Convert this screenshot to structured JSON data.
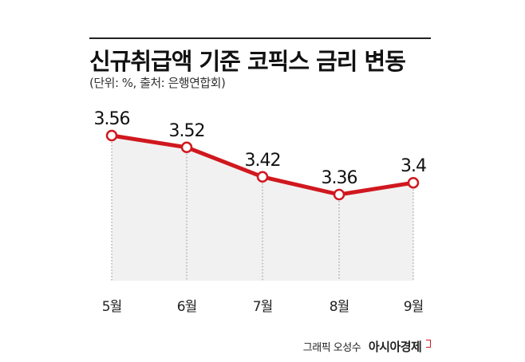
{
  "header": {
    "title": "신규취급액 기준 코픽스 금리 변동",
    "subtitle": "(단위: %, 출처: 은행연합회)"
  },
  "credit": {
    "graphic_text": "그래픽 오성수",
    "brand": "아시아경제"
  },
  "colors": {
    "line": "#d0181f",
    "fill": "#f1f1f1",
    "dotted": "#8a8a8a"
  },
  "chart_data": {
    "type": "line",
    "categories": [
      "5월",
      "6월",
      "7월",
      "8월",
      "9월"
    ],
    "values": [
      3.56,
      3.52,
      3.42,
      3.36,
      3.4
    ],
    "value_labels": [
      "3.56",
      "3.52",
      "3.42",
      "3.36",
      "3.4"
    ],
    "title": "신규취급액 기준 코픽스 금리 변동",
    "subtitle": "(단위: %, 출처: 은행연합회)",
    "unit": "%"
  }
}
